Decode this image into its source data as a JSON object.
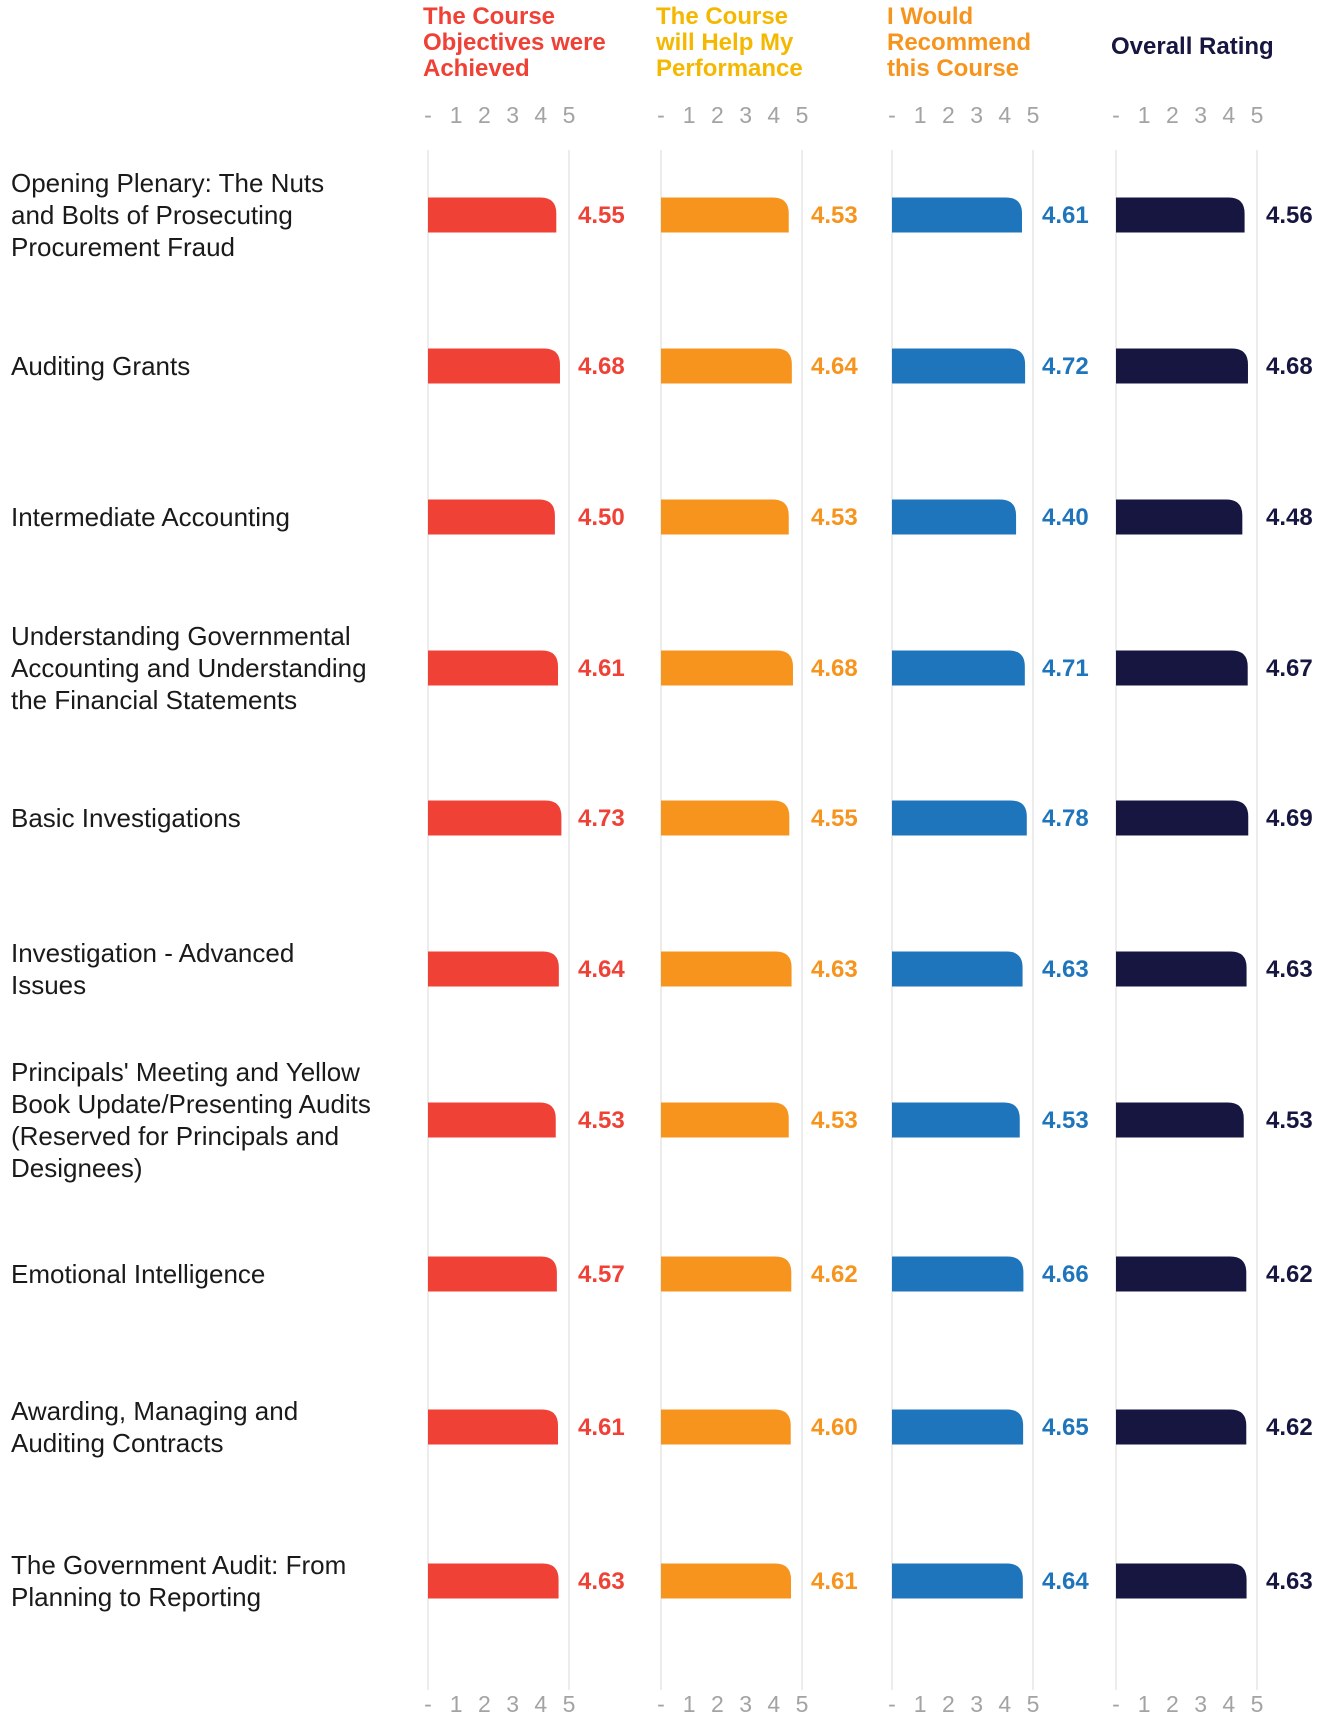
{
  "chart_data": {
    "type": "bar",
    "orientation": "horizontal",
    "xlim": [
      0,
      5
    ],
    "tick_labels": [
      "-",
      "1",
      "2",
      "3",
      "4",
      "5"
    ],
    "grid": "vertical gridlines at 0 and 5 for each panel",
    "legend": "none",
    "series": [
      {
        "name": [
          "The Course",
          "Objectives were",
          "Achieved"
        ],
        "color": "#ef4136",
        "values": [
          4.55,
          4.68,
          4.5,
          4.61,
          4.73,
          4.64,
          4.53,
          4.57,
          4.61,
          4.63
        ]
      },
      {
        "name": [
          "The Course",
          "will Help My",
          "Performance"
        ],
        "color": "#f7941d",
        "header_color": "#f5b800",
        "values": [
          4.53,
          4.64,
          4.53,
          4.68,
          4.55,
          4.63,
          4.53,
          4.62,
          4.6,
          4.61
        ]
      },
      {
        "name": [
          "I Would",
          "Recommend",
          "this Course"
        ],
        "color": "#1f75bb",
        "header_color": "#f7941d",
        "values": [
          4.61,
          4.72,
          4.4,
          4.71,
          4.78,
          4.63,
          4.53,
          4.66,
          4.65,
          4.64
        ]
      },
      {
        "name": [
          "Overall Rating"
        ],
        "color": "#161640",
        "values": [
          4.56,
          4.68,
          4.48,
          4.67,
          4.69,
          4.63,
          4.53,
          4.62,
          4.62,
          4.63
        ]
      }
    ],
    "categories": [
      [
        "Opening Plenary: The Nuts",
        "and Bolts of Prosecuting",
        "Procurement Fraud"
      ],
      [
        "Auditing Grants"
      ],
      [
        "Intermediate Accounting"
      ],
      [
        "Understanding Governmental",
        "Accounting and Understanding",
        "the Financial Statements"
      ],
      [
        "Basic Investigations"
      ],
      [
        "Investigation - Advanced",
        "Issues"
      ],
      [
        "Principals' Meeting and Yellow",
        "Book Update/Presenting Audits",
        "(Reserved for Principals and",
        "Designees)"
      ],
      [
        "Emotional Intelligence"
      ],
      [
        "Awarding, Managing and",
        "Auditing Contracts"
      ],
      [
        "The Government Audit: From",
        "Planning to Reporting"
      ]
    ]
  }
}
